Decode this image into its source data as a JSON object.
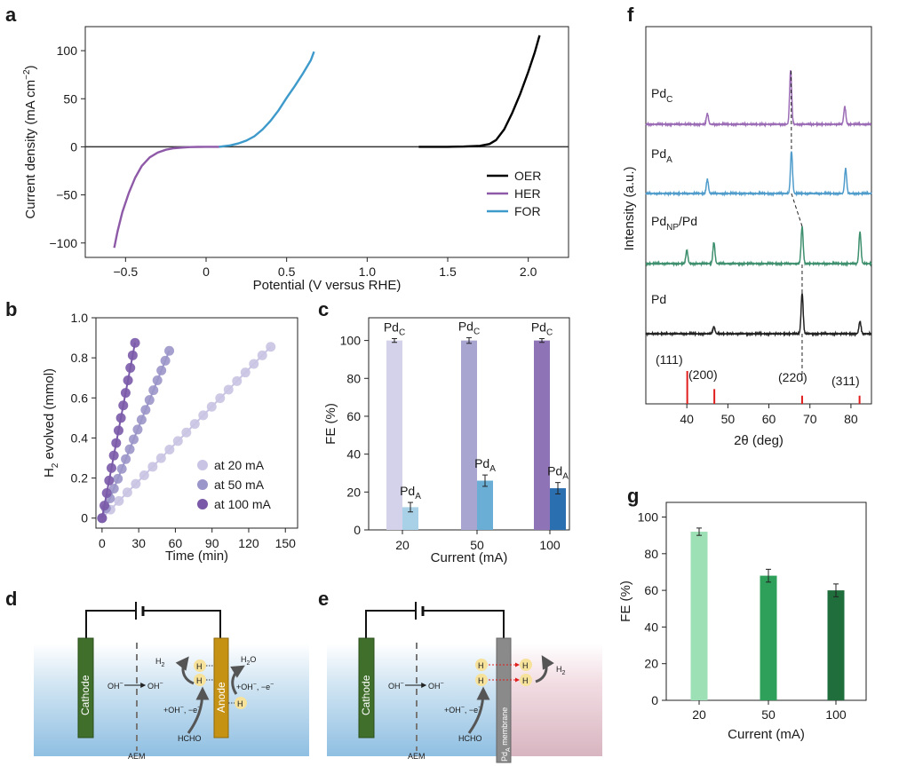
{
  "panel_letters": {
    "a": "a",
    "b": "b",
    "c": "c",
    "d": "d",
    "e": "e",
    "f": "f",
    "g": "g"
  },
  "chart_data": [
    {
      "id": "a",
      "type": "line",
      "xlabel": "Potential (V versus RHE)",
      "ylabel": "Current density (mA cm",
      "ylabel_sup": "−2",
      "ylabel_end": ")",
      "xlim": [
        -0.75,
        2.25
      ],
      "ylim": [
        -115,
        125
      ],
      "xticks": [
        -0.5,
        0,
        0.5,
        1.0,
        1.5,
        2.0
      ],
      "xtick_labels": [
        "−0.5",
        "0",
        "0.5",
        "1.0",
        "1.5",
        "2.0"
      ],
      "yticks": [
        -100,
        -50,
        0,
        50,
        100
      ],
      "ytick_labels": [
        "−100",
        "−50",
        "0",
        "50",
        "100"
      ],
      "legend_position": "lower-right",
      "series": [
        {
          "name": "OER",
          "color": "#000000",
          "x": [
            1.32,
            1.5,
            1.6,
            1.7,
            1.76,
            1.8,
            1.85,
            1.9,
            1.95,
            2.0,
            2.04,
            2.07
          ],
          "y": [
            0,
            0,
            0.3,
            1,
            3,
            7,
            18,
            35,
            55,
            78,
            98,
            116
          ]
        },
        {
          "name": "HER",
          "color": "#8e5aa8",
          "x": [
            -0.57,
            -0.55,
            -0.52,
            -0.48,
            -0.44,
            -0.4,
            -0.35,
            -0.3,
            -0.25,
            -0.2,
            -0.15,
            -0.1,
            -0.05,
            0.0,
            0.08
          ],
          "y": [
            -105,
            -88,
            -68,
            -48,
            -32,
            -20,
            -11,
            -6,
            -3,
            -1.5,
            -0.8,
            -0.3,
            -0.1,
            0,
            0
          ]
        },
        {
          "name": "FOR",
          "color": "#3e9acb",
          "x": [
            0.08,
            0.15,
            0.2,
            0.25,
            0.3,
            0.35,
            0.4,
            0.45,
            0.5,
            0.55,
            0.6,
            0.65,
            0.67
          ],
          "y": [
            0,
            1.5,
            3.5,
            6.5,
            11,
            18,
            27,
            38,
            51,
            63,
            76,
            90,
            99
          ]
        }
      ]
    },
    {
      "id": "b",
      "type": "scatter",
      "xlabel": "Time (min)",
      "ylabel_pre": "H",
      "ylabel_sub": "2",
      "ylabel_post": " evolved (mmol)",
      "xlim": [
        -5,
        160
      ],
      "ylim": [
        -0.05,
        1.0
      ],
      "xticks": [
        0,
        30,
        60,
        90,
        120,
        150
      ],
      "xtick_labels": [
        "0",
        "30",
        "60",
        "90",
        "120",
        "150"
      ],
      "yticks": [
        0,
        0.2,
        0.4,
        0.6,
        0.8,
        1.0
      ],
      "ytick_labels": [
        "0",
        "0.2",
        "0.4",
        "0.6",
        "0.8",
        "1.0"
      ],
      "legend_position": "lower-right",
      "series": [
        {
          "name": "at 20 mA",
          "color": "#c9c4e3",
          "x_end": 138,
          "y_end": 0.855,
          "n_points": 20
        },
        {
          "name": "at 50 mA",
          "color": "#9b96c9",
          "x_end": 55,
          "y_end": 0.835,
          "n_points": 17
        },
        {
          "name": "at 100 mA",
          "color": "#7a5aa8",
          "x_end": 27,
          "y_end": 0.875,
          "n_points": 14
        }
      ]
    },
    {
      "id": "c",
      "type": "bar",
      "xlabel": "Current (mA)",
      "ylabel": "FE (%)",
      "ylim": [
        0,
        112
      ],
      "categories": [
        "20",
        "50",
        "100"
      ],
      "yticks": [
        0,
        20,
        40,
        60,
        80,
        100
      ],
      "ytick_labels": [
        "0",
        "20",
        "40",
        "60",
        "80",
        "100"
      ],
      "series": [
        {
          "name": "Pd",
          "sub": "C",
          "values": [
            100,
            100,
            100
          ],
          "errors": [
            1,
            1.5,
            1
          ],
          "colors": [
            "#d4d1ea",
            "#a9a5d1",
            "#8e74b6"
          ]
        },
        {
          "name": "Pd",
          "sub": "A",
          "values": [
            12,
            26,
            22
          ],
          "errors": [
            2.5,
            3,
            3
          ],
          "colors": [
            "#a8d1e7",
            "#6aaed6",
            "#2a6fb0"
          ]
        }
      ]
    },
    {
      "id": "f",
      "type": "line",
      "xlabel": "2θ (deg)",
      "ylabel": "Intensity (a.u.)",
      "xlim": [
        30,
        85
      ],
      "xticks": [
        40,
        50,
        60,
        70,
        80
      ],
      "xtick_labels": [
        "40",
        "50",
        "60",
        "70",
        "80"
      ],
      "series": [
        {
          "name": "Pd",
          "sub": "C",
          "color": "#9b6cb5",
          "peaks": [
            [
              45,
              12
            ],
            [
              65.3,
              62
            ],
            [
              78.5,
              20
            ]
          ]
        },
        {
          "name": "Pd",
          "sub": "A",
          "color": "#4f9ccb",
          "peaks": [
            [
              45,
              16
            ],
            [
              65.5,
              48
            ],
            [
              78.7,
              28
            ]
          ]
        },
        {
          "name": "Pd",
          "sub": "NP",
          "suffix": "/Pd",
          "color": "#3d8f6e",
          "peaks": [
            [
              40,
              15
            ],
            [
              46.6,
              24
            ],
            [
              68.1,
              42
            ],
            [
              82.2,
              36
            ]
          ]
        },
        {
          "name": "Pd",
          "sub": "",
          "color": "#222222",
          "peaks": [
            [
              46.6,
              8
            ],
            [
              68.1,
              46
            ],
            [
              82.2,
              14
            ]
          ]
        }
      ],
      "reference_lines": [
        {
          "x": 40.1,
          "label": "(111)",
          "height": 1.0
        },
        {
          "x": 46.7,
          "label": "(200)",
          "height": 0.45
        },
        {
          "x": 68.1,
          "label": "(220)",
          "height": 0.25
        },
        {
          "x": 82.1,
          "label": "(311)",
          "height": 0.25
        }
      ],
      "reference_color": "#e11d1d"
    },
    {
      "id": "g",
      "type": "bar",
      "xlabel": "Current (mA)",
      "ylabel": "FE (%)",
      "ylim": [
        0,
        108
      ],
      "categories": [
        "20",
        "50",
        "100"
      ],
      "values": [
        92,
        68,
        60
      ],
      "errors": [
        2,
        3.5,
        3.5
      ],
      "colors": [
        "#9de0b5",
        "#2fa05a",
        "#1f6e3c"
      ],
      "yticks": [
        0,
        20,
        40,
        60,
        80,
        100
      ],
      "ytick_labels": [
        "0",
        "20",
        "40",
        "60",
        "80",
        "100"
      ]
    }
  ],
  "diagram_d": {
    "cathode": "Cathode",
    "anode": "Anode",
    "aem": "AEM",
    "h": "H",
    "h2": "H",
    "h2_sub": "2",
    "h2o": "H",
    "h2o_sub": "2",
    "h2o_post": "O",
    "oh_left": "OH",
    "oh_right": "OH",
    "oh_sup": "−",
    "oh_e_right": "+OH",
    "oh_e_right_tail": ", −e",
    "oh_e_left": "+OH",
    "oh_e_left_tail": ", −e",
    "e_sup": "−",
    "hcho": "HCHO"
  },
  "diagram_e": {
    "cathode": "Cathode",
    "membrane_pre": "Pd",
    "membrane_sub": "A",
    "membrane_post": " membrane",
    "aem": "AEM",
    "h": "H",
    "h2": "H",
    "h2_sub": "2",
    "oh_left": "OH",
    "oh_right": "OH",
    "oh_sup": "−",
    "oh_e": "+OH",
    "oh_e_tail": ", −e",
    "e_sup": "−",
    "hcho": "HCHO"
  }
}
